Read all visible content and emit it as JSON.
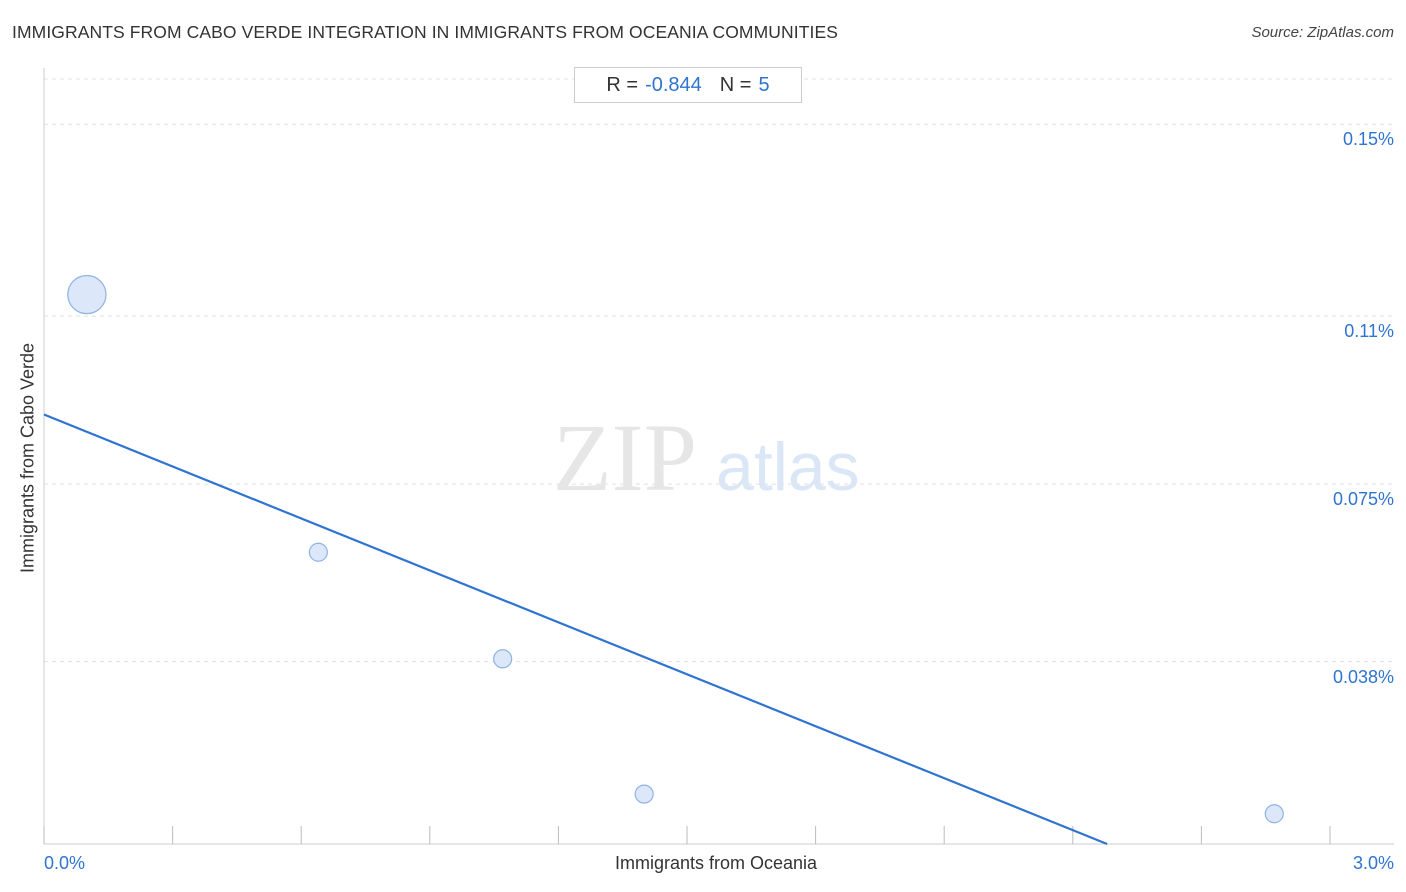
{
  "chart_data": {
    "type": "scatter",
    "title": "IMMIGRANTS FROM CABO VERDE INTEGRATION IN IMMIGRANTS FROM OCEANIA COMMUNITIES",
    "source": "Source: ZipAtlas.com",
    "xlabel": "Immigrants from Oceania",
    "ylabel": "Immigrants from Cabo Verde",
    "xlim": [
      0,
      3.0
    ],
    "ylim": [
      0,
      0.1613
    ],
    "x_tick_labels": [
      {
        "value": 0,
        "label": "0.0%"
      },
      {
        "value": 3.0,
        "label": "3.0%"
      }
    ],
    "y_tick_labels": [
      {
        "value": 0.15,
        "label": "0.15%"
      },
      {
        "value": 0.11,
        "label": "0.11%"
      },
      {
        "value": 0.075,
        "label": "0.075%"
      },
      {
        "value": 0.038,
        "label": "0.038%"
      }
    ],
    "stats": {
      "r_label": "R =",
      "r_value": "-0.844",
      "n_label": "N =",
      "n_value": "5"
    },
    "points": [
      {
        "x": 0.1,
        "y": 0.1145,
        "weight": 4.5
      },
      {
        "x": 0.64,
        "y": 0.0608,
        "weight": 1
      },
      {
        "x": 1.07,
        "y": 0.0386,
        "weight": 1
      },
      {
        "x": 1.4,
        "y": 0.0104,
        "weight": 1
      },
      {
        "x": 2.87,
        "y": 0.0063,
        "weight": 1
      }
    ],
    "trendline": {
      "x": [
        0,
        2.48
      ],
      "y": [
        0.0895,
        0
      ]
    },
    "grid": true,
    "watermark": {
      "zip": "ZIP",
      "atlas": "atlas"
    },
    "colors": {
      "accent": "#2f74d0",
      "point_fill": "#d6e4f8",
      "point_stroke": "#8fb2e3",
      "grid": "#e0e0e0",
      "axis": "#cccccc"
    }
  }
}
